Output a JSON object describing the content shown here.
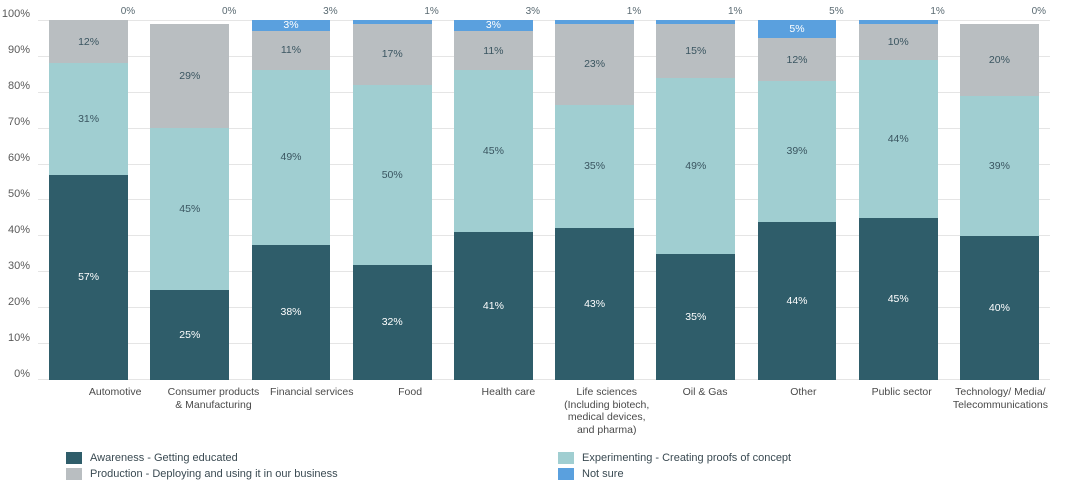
{
  "chart": {
    "type": "stacked-bar-100",
    "ylim": [
      0,
      100
    ],
    "ytick_step": 10,
    "yticks": [
      "0%",
      "10%",
      "20%",
      "30%",
      "40%",
      "50%",
      "60%",
      "70%",
      "80%",
      "90%",
      "100%"
    ],
    "grid_color": "#e5e5e5",
    "background_color": "#ffffff",
    "label_fontsize": 11,
    "series": [
      {
        "key": "awareness",
        "label": "Awareness - Getting educated",
        "color": "#2f5d6a"
      },
      {
        "key": "experimenting",
        "label": "Experimenting - Creating proofs of concept",
        "color": "#a0ced1"
      },
      {
        "key": "production",
        "label": "Production - Deploying and using it in our business",
        "color": "#b9bec1"
      },
      {
        "key": "not_sure",
        "label": "Not sure",
        "color": "#5aa0de"
      }
    ],
    "categories": [
      {
        "label": "Automotive",
        "values": {
          "awareness": 57,
          "experimenting": 31,
          "production": 12,
          "not_sure": 0
        }
      },
      {
        "label": "Consumer products & Manufacturing",
        "values": {
          "awareness": 25,
          "experimenting": 45,
          "production": 29,
          "not_sure": 0
        }
      },
      {
        "label": "Financial services",
        "values": {
          "awareness": 38,
          "experimenting": 49,
          "production": 11,
          "not_sure": 3
        }
      },
      {
        "label": "Food",
        "values": {
          "awareness": 32,
          "experimenting": 50,
          "production": 17,
          "not_sure": 1
        }
      },
      {
        "label": "Health care",
        "values": {
          "awareness": 41,
          "experimenting": 45,
          "production": 11,
          "not_sure": 3
        }
      },
      {
        "label": "Life sciences (Including biotech, medical devices, and pharma)",
        "values": {
          "awareness": 43,
          "experimenting": 35,
          "production": 23,
          "not_sure": 1
        }
      },
      {
        "label": "Oil & Gas",
        "values": {
          "awareness": 35,
          "experimenting": 49,
          "production": 15,
          "not_sure": 1
        }
      },
      {
        "label": "Other",
        "values": {
          "awareness": 44,
          "experimenting": 39,
          "production": 12,
          "not_sure": 5
        }
      },
      {
        "label": "Public sector",
        "values": {
          "awareness": 45,
          "experimenting": 44,
          "production": 10,
          "not_sure": 1
        }
      },
      {
        "label": "Technology/ Media/ Telecommunications",
        "values": {
          "awareness": 40,
          "experimenting": 39,
          "production": 20,
          "not_sure": 0
        }
      }
    ],
    "segment_text_colors": {
      "awareness": "#ffffff",
      "experimenting": "#3a5560",
      "production": "#3a5560",
      "not_sure": "#ffffff"
    }
  }
}
